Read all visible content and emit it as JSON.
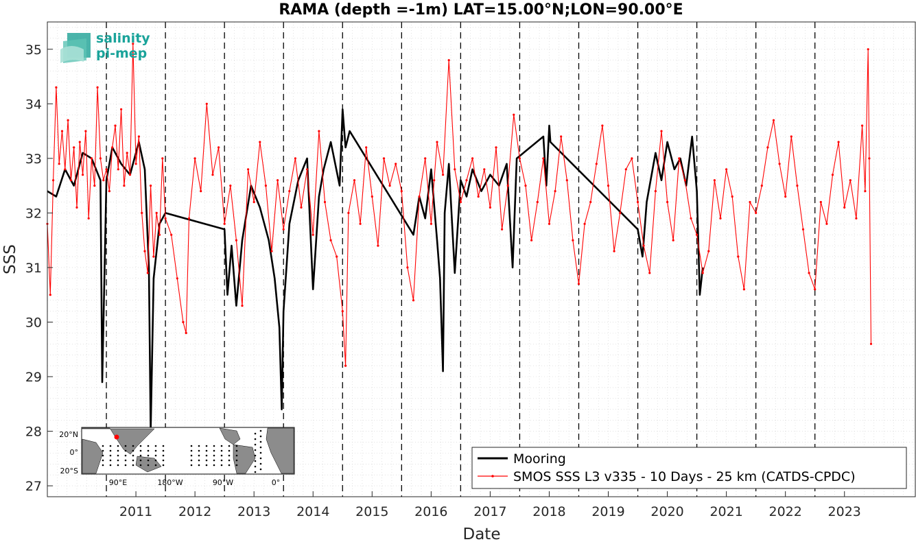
{
  "chart_data": {
    "type": "line",
    "title": "RAMA (depth =-1m) LAT=15.00°N;LON=90.00°E",
    "xlabel": "Date",
    "ylabel": "SSS",
    "xlim": [
      2010.0,
      2024.7
    ],
    "ylim": [
      26.8,
      35.5
    ],
    "x_ticks": [
      2011,
      2012,
      2013,
      2014,
      2015,
      2016,
      2017,
      2018,
      2019,
      2020,
      2021,
      2022,
      2023
    ],
    "y_ticks": [
      27,
      28,
      29,
      30,
      31,
      32,
      33,
      34,
      35
    ],
    "vertical_dashed_lines": [
      2011,
      2012,
      2013,
      2014,
      2015,
      2016,
      2017,
      2018,
      2019,
      2020,
      2021,
      2022,
      2023
    ],
    "grid": "on (dotted minor)",
    "legend_position": "bottom-right",
    "series": [
      {
        "name": "Mooring",
        "color": "#000000",
        "x": [
          2010.0,
          2010.15,
          2010.3,
          2010.45,
          2010.6,
          2010.75,
          2010.9,
          2010.93,
          2011.0,
          2011.1,
          2011.25,
          2011.4,
          2011.55,
          2011.65,
          2011.72,
          2011.75,
          2011.8,
          2011.9,
          2012.0,
          2013.0,
          2013.05,
          2013.12,
          2013.2,
          2013.3,
          2013.45,
          2013.6,
          2013.75,
          2013.85,
          2013.93,
          2013.97,
          2014.0,
          2014.1,
          2014.25,
          2014.4,
          2014.5,
          2014.6,
          2014.68,
          2014.8,
          2014.95,
          2015.0,
          2015.05,
          2015.12,
          2016.2,
          2016.3,
          2016.4,
          2016.5,
          2016.6,
          2016.65,
          2016.7,
          2016.73,
          2016.8,
          2016.9,
          2017.0,
          2017.1,
          2017.2,
          2017.35,
          2017.5,
          2017.65,
          2017.78,
          2017.88,
          2017.95,
          2018.4,
          2018.45,
          2018.5,
          2018.52,
          2020.0,
          2020.08,
          2020.15,
          2020.3,
          2020.4,
          2020.5,
          2020.62,
          2020.72,
          2020.82,
          2020.92,
          2021.0,
          2021.05,
          2021.1
        ],
        "y": [
          32.4,
          32.3,
          32.8,
          32.5,
          33.1,
          33.0,
          32.6,
          28.9,
          32.6,
          33.2,
          32.9,
          32.7,
          33.3,
          32.8,
          31.0,
          28.0,
          30.8,
          31.8,
          32.0,
          31.7,
          30.5,
          31.4,
          30.3,
          31.5,
          32.5,
          32.1,
          31.5,
          30.8,
          29.9,
          28.4,
          30.2,
          31.8,
          32.6,
          33.0,
          30.6,
          32.3,
          32.8,
          33.3,
          32.5,
          33.9,
          33.2,
          33.5,
          31.6,
          32.3,
          31.9,
          32.8,
          31.5,
          30.8,
          29.1,
          32.0,
          32.9,
          30.9,
          32.6,
          32.3,
          32.8,
          32.4,
          32.7,
          32.5,
          32.9,
          31.0,
          33.0,
          33.4,
          32.5,
          33.6,
          33.3,
          31.7,
          31.2,
          32.2,
          33.1,
          32.6,
          33.3,
          32.8,
          33.0,
          32.5,
          33.4,
          32.4,
          30.5,
          31.0
        ]
      },
      {
        "name": "SMOS SSS L3 v335 - 10 Days - 25 km (CATDS-CPDC)",
        "color": "#ff0000",
        "x": [
          2010.0,
          2010.05,
          2010.1,
          2010.15,
          2010.2,
          2010.25,
          2010.3,
          2010.35,
          2010.4,
          2010.45,
          2010.5,
          2010.55,
          2010.6,
          2010.65,
          2010.7,
          2010.75,
          2010.8,
          2010.85,
          2010.9,
          2010.95,
          2011.0,
          2011.05,
          2011.1,
          2011.15,
          2011.2,
          2011.25,
          2011.3,
          2011.35,
          2011.4,
          2011.45,
          2011.5,
          2011.55,
          2011.6,
          2011.65,
          2011.7,
          2011.75,
          2011.8,
          2011.85,
          2011.9,
          2011.95,
          2012.0,
          2012.1,
          2012.2,
          2012.3,
          2012.35,
          2012.4,
          2012.5,
          2012.6,
          2012.7,
          2012.8,
          2012.9,
          2013.0,
          2013.1,
          2013.2,
          2013.3,
          2013.4,
          2013.5,
          2013.6,
          2013.7,
          2013.8,
          2013.9,
          2014.0,
          2014.1,
          2014.2,
          2014.3,
          2014.4,
          2014.5,
          2014.6,
          2014.7,
          2014.8,
          2014.9,
          2015.0,
          2015.05,
          2015.1,
          2015.2,
          2015.3,
          2015.4,
          2015.5,
          2015.6,
          2015.7,
          2015.8,
          2015.9,
          2016.0,
          2016.1,
          2016.2,
          2016.3,
          2016.4,
          2016.5,
          2016.55,
          2016.6,
          2016.7,
          2016.8,
          2016.9,
          2017.0,
          2017.1,
          2017.2,
          2017.3,
          2017.4,
          2017.5,
          2017.6,
          2017.7,
          2017.8,
          2017.9,
          2018.0,
          2018.1,
          2018.2,
          2018.3,
          2018.4,
          2018.5,
          2018.6,
          2018.7,
          2018.8,
          2018.9,
          2019.0,
          2019.1,
          2019.2,
          2019.3,
          2019.4,
          2019.5,
          2019.6,
          2019.7,
          2019.8,
          2019.9,
          2020.0,
          2020.1,
          2020.2,
          2020.3,
          2020.4,
          2020.5,
          2020.6,
          2020.7,
          2020.8,
          2020.9,
          2021.0,
          2021.1,
          2021.2,
          2021.3,
          2021.4,
          2021.5,
          2021.6,
          2021.7,
          2021.8,
          2021.9,
          2022.0,
          2022.1,
          2022.2,
          2022.3,
          2022.4,
          2022.5,
          2022.6,
          2022.7,
          2022.8,
          2022.9,
          2023.0,
          2023.1,
          2023.2,
          2023.3,
          2023.4,
          2023.5,
          2023.6,
          2023.7,
          2023.8,
          2023.85,
          2023.9,
          2023.92,
          2023.95
        ],
        "y": [
          31.8,
          30.5,
          32.6,
          34.3,
          32.9,
          33.5,
          32.8,
          33.7,
          32.6,
          33.2,
          32.1,
          33.3,
          32.7,
          33.5,
          31.9,
          33.0,
          32.5,
          34.3,
          33.0,
          32.6,
          32.8,
          32.4,
          33.2,
          33.6,
          32.8,
          33.9,
          32.5,
          33.1,
          32.7,
          35.1,
          32.9,
          33.4,
          32.0,
          31.3,
          30.9,
          32.5,
          31.2,
          32.0,
          31.6,
          33.0,
          31.9,
          31.6,
          30.8,
          30.0,
          29.8,
          31.9,
          33.0,
          32.4,
          34.0,
          32.7,
          33.2,
          31.8,
          32.5,
          31.5,
          30.3,
          32.8,
          32.2,
          33.3,
          32.5,
          31.3,
          32.6,
          31.7,
          32.4,
          33.0,
          32.1,
          32.8,
          31.6,
          33.5,
          32.2,
          31.5,
          31.2,
          30.2,
          29.2,
          32.0,
          32.6,
          31.8,
          33.2,
          32.3,
          31.4,
          33.0,
          32.5,
          32.9,
          32.4,
          31.0,
          30.4,
          32.3,
          33.0,
          31.8,
          32.6,
          33.3,
          32.7,
          34.8,
          32.8,
          32.2,
          32.6,
          33.0,
          32.3,
          32.8,
          32.1,
          33.2,
          31.7,
          32.5,
          33.8,
          33.0,
          32.5,
          31.5,
          32.2,
          33.0,
          31.8,
          32.4,
          33.4,
          32.6,
          31.5,
          30.7,
          31.8,
          32.2,
          32.9,
          33.6,
          32.5,
          31.3,
          32.0,
          32.8,
          33.0,
          32.2,
          31.4,
          30.9,
          32.4,
          33.5,
          32.2,
          31.5,
          33.0,
          32.6,
          31.9,
          31.6,
          30.9,
          31.3,
          32.6,
          31.9,
          32.8,
          32.3,
          31.2,
          30.6,
          32.2,
          32.0,
          32.5,
          33.2,
          33.7,
          32.9,
          32.3,
          33.4,
          32.5,
          31.7,
          30.9,
          30.6,
          32.2,
          31.8,
          32.7,
          33.3,
          32.1,
          32.6,
          31.9,
          33.6,
          32.4,
          35.0,
          33.0,
          29.6
        ]
      }
    ],
    "inset_map": {
      "lat_labels": [
        "20°N",
        "0°",
        "20°S"
      ],
      "lon_labels": [
        "90°E",
        "180°W",
        "90°W",
        "0°"
      ],
      "marker_color": "#ff0000"
    }
  },
  "logo": {
    "line1": "salinity",
    "line2": "pi-mep"
  }
}
